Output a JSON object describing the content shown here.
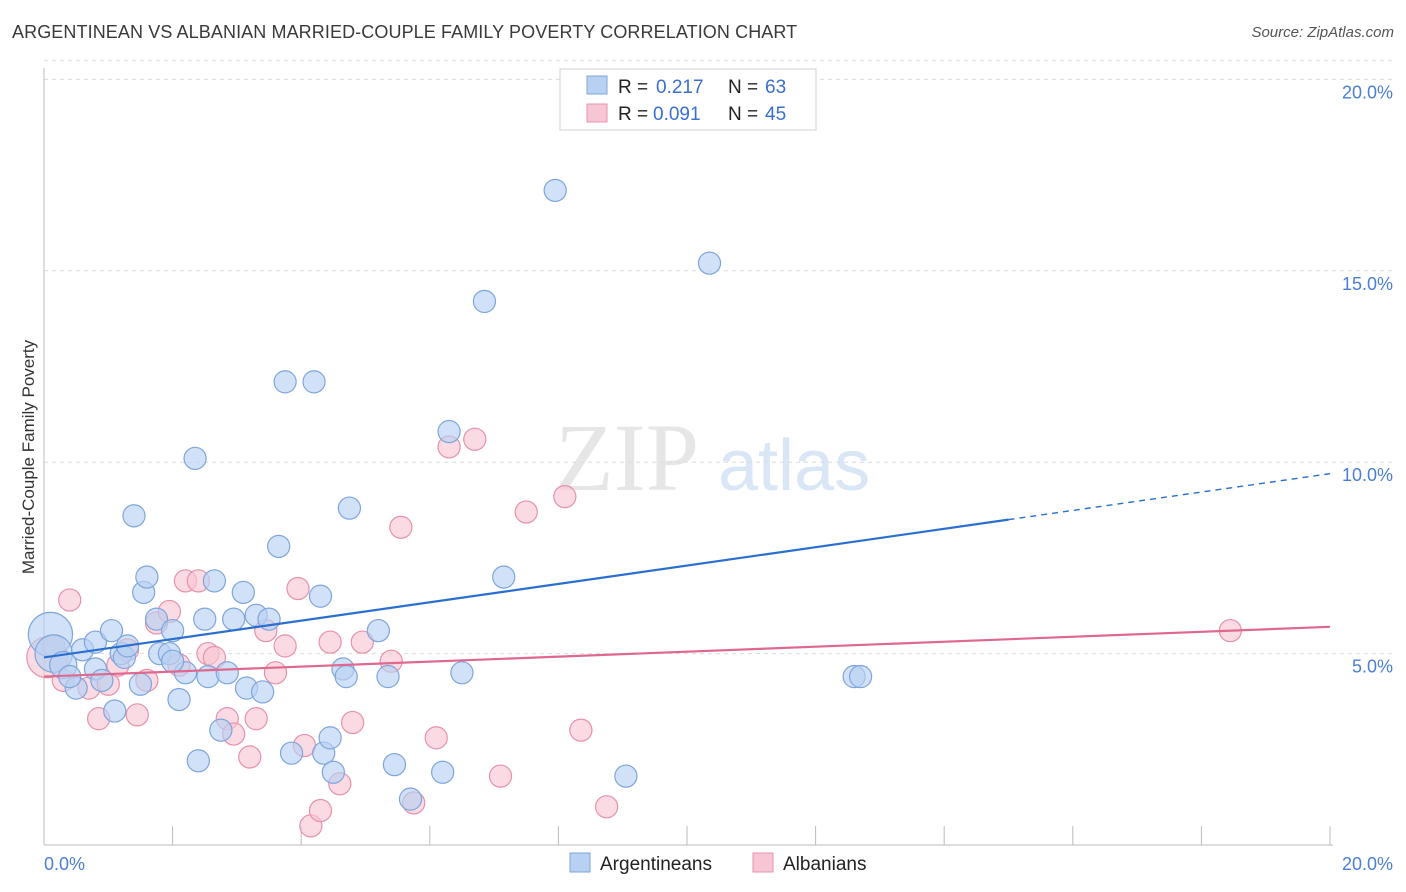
{
  "header": {
    "title": "ARGENTINEAN VS ALBANIAN MARRIED-COUPLE FAMILY POVERTY CORRELATION CHART",
    "source": "Source: ZipAtlas.com"
  },
  "watermark": {
    "zip": "ZIP",
    "atlas": "atlas"
  },
  "colors": {
    "blue_fill": "#b8d1f2",
    "blue_stroke": "#7fa6dc",
    "blue_line": "#2a6fcf",
    "pink_fill": "#f7c6d4",
    "pink_stroke": "#e891ab",
    "pink_line": "#e0688f",
    "tick_text": "#4a7fd4",
    "grid": "#dcdcdc"
  },
  "chart_data": {
    "type": "scatter",
    "title": "ARGENTINEAN VS ALBANIAN MARRIED-COUPLE FAMILY POVERTY CORRELATION CHART",
    "xlabel": "",
    "ylabel": "Married-Couple Family Poverty",
    "xlim": [
      0,
      20
    ],
    "ylim": [
      0,
      20.5
    ],
    "x_tick_labels": [
      "0.0%",
      "20.0%"
    ],
    "y_ticks": [
      5,
      10,
      15,
      20
    ],
    "y_tick_labels": [
      "5.0%",
      "10.0%",
      "15.0%",
      "20.0%"
    ],
    "legend": [
      {
        "r_label": "R =",
        "r": "0.217",
        "n_label": "N =",
        "n": "63"
      },
      {
        "r_label": "R =",
        "r": "0.091",
        "n_label": "N =",
        "n": "45"
      }
    ],
    "series": [
      {
        "name": "Argentineans",
        "color": "#b8d1f2",
        "trend": {
          "x": [
            0,
            15
          ],
          "y": [
            4.9,
            8.5
          ],
          "dashed_to": [
            20,
            9.7
          ]
        },
        "points": [
          [
            0.1,
            5.5,
            2.6
          ],
          [
            0.15,
            5.0,
            2.2
          ],
          [
            0.3,
            4.7,
            1.6
          ],
          [
            0.5,
            4.1,
            1.3
          ],
          [
            0.6,
            5.1,
            1.3
          ],
          [
            0.8,
            5.3,
            1.3
          ],
          [
            0.8,
            4.6,
            1.3
          ],
          [
            1.05,
            5.6,
            1.3
          ],
          [
            1.1,
            3.5,
            1.3
          ],
          [
            1.2,
            5.0,
            1.3
          ],
          [
            1.25,
            4.9,
            1.3
          ],
          [
            1.4,
            8.6,
            1.3
          ],
          [
            1.5,
            4.2,
            1.3
          ],
          [
            1.55,
            6.6,
            1.3
          ],
          [
            1.6,
            7.0,
            1.3
          ],
          [
            1.75,
            5.9,
            1.3
          ],
          [
            1.8,
            5.0,
            1.3
          ],
          [
            1.95,
            5.0,
            1.3
          ],
          [
            2.0,
            5.6,
            1.3
          ],
          [
            2.1,
            3.8,
            1.3
          ],
          [
            2.2,
            4.5,
            1.3
          ],
          [
            2.35,
            10.1,
            1.3
          ],
          [
            2.4,
            2.2,
            1.3
          ],
          [
            2.5,
            5.9,
            1.3
          ],
          [
            2.55,
            4.4,
            1.3
          ],
          [
            2.65,
            6.9,
            1.3
          ],
          [
            2.75,
            3.0,
            1.3
          ],
          [
            2.85,
            4.5,
            1.3
          ],
          [
            2.95,
            5.9,
            1.3
          ],
          [
            3.1,
            6.6,
            1.3
          ],
          [
            3.15,
            4.1,
            1.3
          ],
          [
            3.3,
            6.0,
            1.3
          ],
          [
            3.4,
            4.0,
            1.3
          ],
          [
            3.5,
            5.9,
            1.3
          ],
          [
            3.65,
            7.8,
            1.3
          ],
          [
            3.75,
            12.1,
            1.3
          ],
          [
            3.85,
            2.4,
            1.3
          ],
          [
            4.2,
            12.1,
            1.3
          ],
          [
            4.3,
            6.5,
            1.3
          ],
          [
            4.35,
            2.4,
            1.3
          ],
          [
            4.45,
            2.8,
            1.3
          ],
          [
            4.5,
            1.9,
            1.3
          ],
          [
            4.65,
            4.6,
            1.3
          ],
          [
            4.7,
            4.4,
            1.3
          ],
          [
            4.75,
            8.8,
            1.3
          ],
          [
            5.2,
            5.6,
            1.3
          ],
          [
            5.35,
            4.4,
            1.3
          ],
          [
            5.45,
            2.1,
            1.3
          ],
          [
            5.7,
            1.2,
            1.3
          ],
          [
            6.2,
            1.9,
            1.3
          ],
          [
            6.3,
            10.8,
            1.3
          ],
          [
            6.5,
            4.5,
            1.3
          ],
          [
            6.85,
            14.2,
            1.3
          ],
          [
            7.15,
            7.0,
            1.3
          ],
          [
            7.95,
            17.1,
            1.3
          ],
          [
            9.05,
            1.8,
            1.3
          ],
          [
            10.35,
            15.2,
            1.3
          ],
          [
            12.6,
            4.4,
            1.3
          ],
          [
            12.7,
            4.4,
            1.3
          ],
          [
            0.4,
            4.4,
            1.3
          ],
          [
            0.9,
            4.3,
            1.3
          ],
          [
            1.3,
            5.2,
            1.3
          ],
          [
            2.0,
            4.8,
            1.3
          ]
        ]
      },
      {
        "name": "Albanians",
        "color": "#f7c6d4",
        "trend": {
          "x": [
            0,
            20
          ],
          "y": [
            4.4,
            5.7
          ]
        },
        "points": [
          [
            0.05,
            4.9,
            2.4
          ],
          [
            0.3,
            4.3,
            1.3
          ],
          [
            0.4,
            6.4,
            1.3
          ],
          [
            0.7,
            4.1,
            1.3
          ],
          [
            0.85,
            3.3,
            1.3
          ],
          [
            1.0,
            4.2,
            1.3
          ],
          [
            1.15,
            4.7,
            1.3
          ],
          [
            1.3,
            5.1,
            1.3
          ],
          [
            1.45,
            3.4,
            1.3
          ],
          [
            1.6,
            4.3,
            1.3
          ],
          [
            1.75,
            5.8,
            1.3
          ],
          [
            1.95,
            6.1,
            1.3
          ],
          [
            2.1,
            4.7,
            1.3
          ],
          [
            2.2,
            6.9,
            1.3
          ],
          [
            2.4,
            6.9,
            1.3
          ],
          [
            2.55,
            5.0,
            1.3
          ],
          [
            2.65,
            4.9,
            1.3
          ],
          [
            2.85,
            3.3,
            1.3
          ],
          [
            2.95,
            2.9,
            1.3
          ],
          [
            3.2,
            2.3,
            1.3
          ],
          [
            3.3,
            3.3,
            1.3
          ],
          [
            3.45,
            5.6,
            1.3
          ],
          [
            3.6,
            4.5,
            1.3
          ],
          [
            3.75,
            5.2,
            1.3
          ],
          [
            3.95,
            6.7,
            1.3
          ],
          [
            4.05,
            2.6,
            1.3
          ],
          [
            4.15,
            0.5,
            1.3
          ],
          [
            4.3,
            0.9,
            1.3
          ],
          [
            4.45,
            5.3,
            1.3
          ],
          [
            4.6,
            1.6,
            1.3
          ],
          [
            4.8,
            3.2,
            1.3
          ],
          [
            4.95,
            5.3,
            1.3
          ],
          [
            5.4,
            4.8,
            1.3
          ],
          [
            5.55,
            8.3,
            1.3
          ],
          [
            5.75,
            1.1,
            1.3
          ],
          [
            6.1,
            2.8,
            1.3
          ],
          [
            6.3,
            10.4,
            1.3
          ],
          [
            6.7,
            10.6,
            1.3
          ],
          [
            7.1,
            1.8,
            1.3
          ],
          [
            7.5,
            8.7,
            1.3
          ],
          [
            8.1,
            9.1,
            1.3
          ],
          [
            8.35,
            3.0,
            1.3
          ],
          [
            8.75,
            1.0,
            1.3
          ],
          [
            18.45,
            5.6,
            1.3
          ],
          [
            0.15,
            5.2,
            1.3
          ]
        ]
      }
    ]
  }
}
